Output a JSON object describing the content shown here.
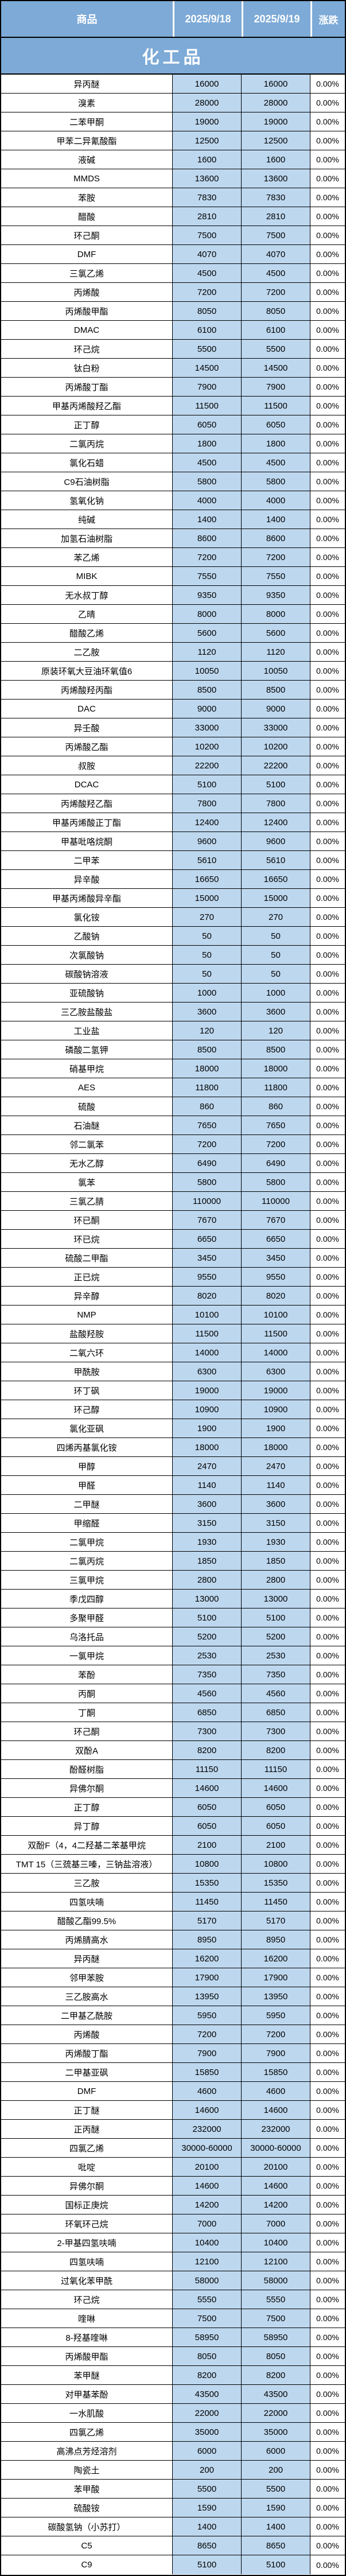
{
  "colors": {
    "header_bg": "#7daad7",
    "cell_blue": "#bdd7ee",
    "row_bg": "#ffffff",
    "border": "#000000",
    "header_text": "#ffffff"
  },
  "table": {
    "columns": [
      "商品",
      "2025/9/18",
      "2025/9/19",
      "涨跌"
    ],
    "section": "化工品",
    "rows": [
      [
        "异丙醚",
        "16000",
        "16000",
        "0.00%"
      ],
      [
        "溴素",
        "28000",
        "28000",
        "0.00%"
      ],
      [
        "二苯甲酮",
        "19000",
        "19000",
        "0.00%"
      ],
      [
        "甲苯二异氰酸酯",
        "12500",
        "12500",
        "0.00%"
      ],
      [
        "液碱",
        "1600",
        "1600",
        "0.00%"
      ],
      [
        "MMDS",
        "13600",
        "13600",
        "0.00%"
      ],
      [
        "苯胺",
        "7830",
        "7830",
        "0.00%"
      ],
      [
        "醋酸",
        "2810",
        "2810",
        "0.00%"
      ],
      [
        "环己酮",
        "7500",
        "7500",
        "0.00%"
      ],
      [
        "DMF",
        "4070",
        "4070",
        "0.00%"
      ],
      [
        "三氯乙烯",
        "4500",
        "4500",
        "0.00%"
      ],
      [
        "丙烯酸",
        "7200",
        "7200",
        "0.00%"
      ],
      [
        "丙烯酸甲酯",
        "8050",
        "8050",
        "0.00%"
      ],
      [
        "DMAC",
        "6100",
        "6100",
        "0.00%"
      ],
      [
        "环己烷",
        "5500",
        "5500",
        "0.00%"
      ],
      [
        "钛白粉",
        "14500",
        "14500",
        "0.00%"
      ],
      [
        "丙烯酸丁酯",
        "7900",
        "7900",
        "0.00%"
      ],
      [
        "甲基丙烯酸羟乙酯",
        "11500",
        "11500",
        "0.00%"
      ],
      [
        "正丁醇",
        "6050",
        "6050",
        "0.00%"
      ],
      [
        "二氯丙烷",
        "1800",
        "1800",
        "0.00%"
      ],
      [
        "氯化石蜡",
        "4500",
        "4500",
        "0.00%"
      ],
      [
        "C9石油树脂",
        "5800",
        "5800",
        "0.00%"
      ],
      [
        "氢氧化钠",
        "4000",
        "4000",
        "0.00%"
      ],
      [
        "纯碱",
        "1400",
        "1400",
        "0.00%"
      ],
      [
        "加氢石油树脂",
        "8600",
        "8600",
        "0.00%"
      ],
      [
        "苯乙烯",
        "7200",
        "7200",
        "0.00%"
      ],
      [
        "MIBK",
        "7550",
        "7550",
        "0.00%"
      ],
      [
        "无水叔丁醇",
        "9350",
        "9350",
        "0.00%"
      ],
      [
        "乙晴",
        "8000",
        "8000",
        "0.00%"
      ],
      [
        "醋酸乙烯",
        "5600",
        "5600",
        "0.00%"
      ],
      [
        "二乙胺",
        "1120",
        "1120",
        "0.00%"
      ],
      [
        "原装环氧大豆油环氧值6",
        "10050",
        "10050",
        "0.00%"
      ],
      [
        "丙烯酸羟丙酯",
        "8500",
        "8500",
        "0.00%"
      ],
      [
        "DAC",
        "9000",
        "9000",
        "0.00%"
      ],
      [
        "异壬酸",
        "33000",
        "33000",
        "0.00%"
      ],
      [
        "丙烯酸乙酯",
        "10200",
        "10200",
        "0.00%"
      ],
      [
        "叔胺",
        "22200",
        "22200",
        "0.00%"
      ],
      [
        "DCAC",
        "5100",
        "5100",
        "0.00%"
      ],
      [
        "丙烯酸羟乙酯",
        "7800",
        "7800",
        "0.00%"
      ],
      [
        "甲基丙烯酸正丁酯",
        "12400",
        "12400",
        "0.00%"
      ],
      [
        "甲基吡咯烷酮",
        "9600",
        "9600",
        "0.00%"
      ],
      [
        "二甲苯",
        "5610",
        "5610",
        "0.00%"
      ],
      [
        "异辛酸",
        "16650",
        "16650",
        "0.00%"
      ],
      [
        "甲基丙烯酸异辛酯",
        "15000",
        "15000",
        "0.00%"
      ],
      [
        "氯化铵",
        "270",
        "270",
        "0.00%"
      ],
      [
        "乙酸钠",
        "50",
        "50",
        "0.00%"
      ],
      [
        "次氯酸钠",
        "50",
        "50",
        "0.00%"
      ],
      [
        "碳酸钠溶液",
        "50",
        "50",
        "0.00%"
      ],
      [
        "亚硫酸钠",
        "1000",
        "1000",
        "0.00%"
      ],
      [
        "三乙胺盐酸盐",
        "3600",
        "3600",
        "0.00%"
      ],
      [
        "工业盐",
        "120",
        "120",
        "0.00%"
      ],
      [
        "磷酸二氢钾",
        "8500",
        "8500",
        "0.00%"
      ],
      [
        "硝基甲烷",
        "18000",
        "18000",
        "0.00%"
      ],
      [
        "AES",
        "11800",
        "11800",
        "0.00%"
      ],
      [
        "硫酸",
        "860",
        "860",
        "0.00%"
      ],
      [
        "石油醚",
        "7650",
        "7650",
        "0.00%"
      ],
      [
        "邻二氯苯",
        "7200",
        "7200",
        "0.00%"
      ],
      [
        "无水乙醇",
        "6490",
        "6490",
        "0.00%"
      ],
      [
        "氯苯",
        "5800",
        "5800",
        "0.00%"
      ],
      [
        "三氯乙腈",
        "110000",
        "110000",
        "0.00%"
      ],
      [
        "环已酮",
        "7670",
        "7670",
        "0.00%"
      ],
      [
        "环已烷",
        "6650",
        "6650",
        "0.00%"
      ],
      [
        "硫酸二甲酯",
        "3450",
        "3450",
        "0.00%"
      ],
      [
        "正已烷",
        "9550",
        "9550",
        "0.00%"
      ],
      [
        "异辛醇",
        "8020",
        "8020",
        "0.00%"
      ],
      [
        "NMP",
        "10100",
        "10100",
        "0.00%"
      ],
      [
        "盐酸羟胺",
        "11500",
        "11500",
        "0.00%"
      ],
      [
        "二氧六环",
        "14000",
        "14000",
        "0.00%"
      ],
      [
        "甲酰胺",
        "6300",
        "6300",
        "0.00%"
      ],
      [
        "环丁砜",
        "19000",
        "19000",
        "0.00%"
      ],
      [
        "环己醇",
        "10900",
        "10900",
        "0.00%"
      ],
      [
        "氯化亚砜",
        "1900",
        "1900",
        "0.00%"
      ],
      [
        "四烯丙基氯化铵",
        "18000",
        "18000",
        "0.00%"
      ],
      [
        "甲醇",
        "2470",
        "2470",
        "0.00%"
      ],
      [
        "甲醛",
        "1140",
        "1140",
        "0.00%"
      ],
      [
        "二甲醚",
        "3600",
        "3600",
        "0.00%"
      ],
      [
        "甲缩醛",
        "3150",
        "3150",
        "0.00%"
      ],
      [
        "二氯甲烷",
        "1930",
        "1930",
        "0.00%"
      ],
      [
        "二氯丙烷",
        "1850",
        "1850",
        "0.00%"
      ],
      [
        "三氯甲烷",
        "2800",
        "2800",
        "0.00%"
      ],
      [
        "季戊四醇",
        "13000",
        "13000",
        "0.00%"
      ],
      [
        "多聚甲醛",
        "5100",
        "5100",
        "0.00%"
      ],
      [
        "乌洛托品",
        "5200",
        "5200",
        "0.00%"
      ],
      [
        "一氯甲烷",
        "2530",
        "2530",
        "0.00%"
      ],
      [
        "苯酚",
        "7350",
        "7350",
        "0.00%"
      ],
      [
        "丙酮",
        "4560",
        "4560",
        "0.00%"
      ],
      [
        "丁酮",
        "6850",
        "6850",
        "0.00%"
      ],
      [
        "环己酮",
        "7300",
        "7300",
        "0.00%"
      ],
      [
        "双酚A",
        "8200",
        "8200",
        "0.00%"
      ],
      [
        "酚醛树脂",
        "11150",
        "11150",
        "0.00%"
      ],
      [
        "异佛尔酮",
        "14600",
        "14600",
        "0.00%"
      ],
      [
        "正丁醇",
        "6050",
        "6050",
        "0.00%"
      ],
      [
        "异丁醇",
        "6050",
        "6050",
        "0.00%"
      ],
      [
        "双酚F（4，4二羟基二苯基甲烷",
        "2100",
        "2100",
        "0.00%"
      ],
      [
        "TMT 15（三巯基三嗪，三钠盐溶液）",
        "10800",
        "10800",
        "0.00%"
      ],
      [
        "三乙胺",
        "15350",
        "15350",
        "0.00%"
      ],
      [
        "四氢呋喃",
        "11450",
        "11450",
        "0.00%"
      ],
      [
        "醋酸乙酯99.5%",
        "5170",
        "5170",
        "0.00%"
      ],
      [
        "丙烯腈高水",
        "8950",
        "8950",
        "0.00%"
      ],
      [
        "异丙醚",
        "16200",
        "16200",
        "0.00%"
      ],
      [
        "邻甲苯胺",
        "17900",
        "17900",
        "0.00%"
      ],
      [
        "三乙胺高水",
        "13950",
        "13950",
        "0.00%"
      ],
      [
        "二甲基乙酰胺",
        "5950",
        "5950",
        "0.00%"
      ],
      [
        "丙烯酸",
        "7200",
        "7200",
        "0.00%"
      ],
      [
        "丙烯酸丁酯",
        "7900",
        "7900",
        "0.00%"
      ],
      [
        "二甲基亚砜",
        "15850",
        "15850",
        "0.00%"
      ],
      [
        "DMF",
        "4600",
        "4600",
        "0.00%"
      ],
      [
        "正丁醚",
        "14600",
        "14600",
        "0.00%"
      ],
      [
        "正丙醚",
        "232000",
        "232000",
        "0.00%"
      ],
      [
        "四氯乙烯",
        "30000-60000",
        "30000-60000",
        "0.00%"
      ],
      [
        "吡啶",
        "20100",
        "20100",
        "0.00%"
      ],
      [
        "异佛尔酮",
        "14600",
        "14600",
        "0.00%"
      ],
      [
        "国标正庚烷",
        "14200",
        "14200",
        "0.00%"
      ],
      [
        "环氧环己烷",
        "7000",
        "7000",
        "0.00%"
      ],
      [
        "2-甲基四氢呋喃",
        "10400",
        "10400",
        "0.00%"
      ],
      [
        "四氢呋喃",
        "12100",
        "12100",
        "0.00%"
      ],
      [
        "过氧化苯甲酰",
        "58000",
        "58000",
        "0.00%"
      ],
      [
        "环己烷",
        "5550",
        "5550",
        "0.00%"
      ],
      [
        "喹啉",
        "7500",
        "7500",
        "0.00%"
      ],
      [
        "8-羟基喹啉",
        "58950",
        "58950",
        "0.00%"
      ],
      [
        "丙烯酸甲酯",
        "8050",
        "8050",
        "0.00%"
      ],
      [
        "苯甲醚",
        "8200",
        "8200",
        "0.00%"
      ],
      [
        "对甲基苯酚",
        "43500",
        "43500",
        "0.00%"
      ],
      [
        "一水肌酸",
        "22000",
        "22000",
        "0.00%"
      ],
      [
        "四氯乙烯",
        "35000",
        "35000",
        "0.00%"
      ],
      [
        "高沸点芳烃溶剂",
        "6000",
        "6000",
        "0.00%"
      ],
      [
        "陶瓷土",
        "200",
        "200",
        "0.00%"
      ],
      [
        "苯甲酸",
        "5500",
        "5500",
        "0.00%"
      ],
      [
        "硫酸铵",
        "1590",
        "1590",
        "0.00%"
      ],
      [
        "碳酸氢钠（小苏打）",
        "1400",
        "1400",
        "0.00%"
      ],
      [
        "C5",
        "8650",
        "8650",
        "0.00%"
      ],
      [
        "C9",
        "5100",
        "5100",
        "0.00%"
      ]
    ]
  }
}
